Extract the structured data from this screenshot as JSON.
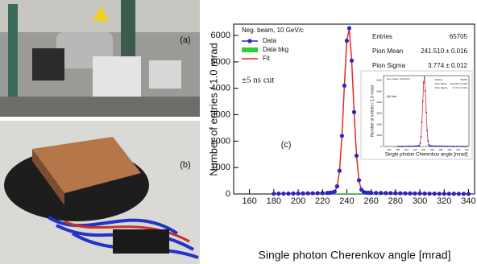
{
  "panels": {
    "a": "(a)",
    "b": "(b)"
  },
  "chart_data": {
    "type": "scatter",
    "panel_label": "(c)",
    "legend_title": "Neg. beam, 10 GeV/c",
    "annotation": "±5 ns cut",
    "inset_note": "All hits",
    "xlabel": "Single photon Cherenkov angle [mrad]",
    "ylabel": "Number of entries / 1.0 mrad",
    "xlim": [
      147,
      345
    ],
    "ylim": [
      0,
      6430
    ],
    "xticks": [
      160,
      180,
      200,
      220,
      240,
      260,
      280,
      300,
      320,
      340
    ],
    "yticks": [
      0,
      1000,
      2000,
      3000,
      4000,
      5000,
      6000
    ],
    "stats": [
      [
        "Entries",
        "65705"
      ],
      [
        "Pion Mean",
        "241.510 ± 0.016"
      ],
      [
        "Pion Sigma",
        "3.774 ± 0.012"
      ]
    ],
    "x": [
      180,
      184,
      188,
      192,
      196,
      200,
      204,
      208,
      212,
      216,
      220,
      224,
      226,
      228,
      230,
      232,
      234,
      236,
      238,
      240,
      242,
      244,
      246,
      248,
      250,
      252,
      254,
      256,
      258,
      260,
      264,
      268,
      272,
      276,
      280,
      284,
      288,
      292,
      296,
      300,
      304,
      308,
      312,
      316,
      320,
      324,
      328,
      332,
      336,
      340
    ],
    "series": [
      {
        "name": "Data bkg",
        "color": "#2ecc40",
        "style": "area",
        "values": [
          5,
          6,
          7,
          8,
          9,
          10,
          11,
          12,
          14,
          15,
          17,
          19,
          20,
          21,
          22,
          23,
          24,
          25,
          25,
          26,
          26,
          25,
          25,
          24,
          24,
          23,
          22,
          21,
          21,
          20,
          19,
          18,
          17,
          16,
          15,
          14,
          13,
          12,
          11,
          10,
          9,
          8,
          7,
          6,
          5,
          5,
          4,
          4,
          3,
          3
        ]
      },
      {
        "name": "Fit",
        "color": "#e8281e",
        "style": "line",
        "values": [
          10,
          12,
          14,
          15,
          18,
          20,
          22,
          25,
          28,
          30,
          35,
          40,
          45,
          55,
          85,
          280,
          870,
          2190,
          4110,
          5820,
          6250,
          5060,
          3100,
          1440,
          510,
          150,
          70,
          52,
          46,
          42,
          40,
          38,
          35,
          33,
          30,
          28,
          25,
          22,
          20,
          18,
          16,
          14,
          12,
          10,
          9,
          8,
          7,
          6,
          5,
          4
        ]
      },
      {
        "name": "Data",
        "color": "#2626c8",
        "style": "points",
        "values": [
          10,
          12,
          14,
          15,
          18,
          20,
          22,
          25,
          28,
          30,
          35,
          40,
          45,
          55,
          90,
          290,
          880,
          2200,
          4100,
          5800,
          6280,
          5050,
          3100,
          1450,
          520,
          160,
          70,
          50,
          45,
          42,
          40,
          38,
          35,
          33,
          30,
          28,
          25,
          22,
          20,
          18,
          16,
          14,
          12,
          10,
          9,
          8,
          7,
          6,
          5,
          4
        ]
      }
    ]
  }
}
